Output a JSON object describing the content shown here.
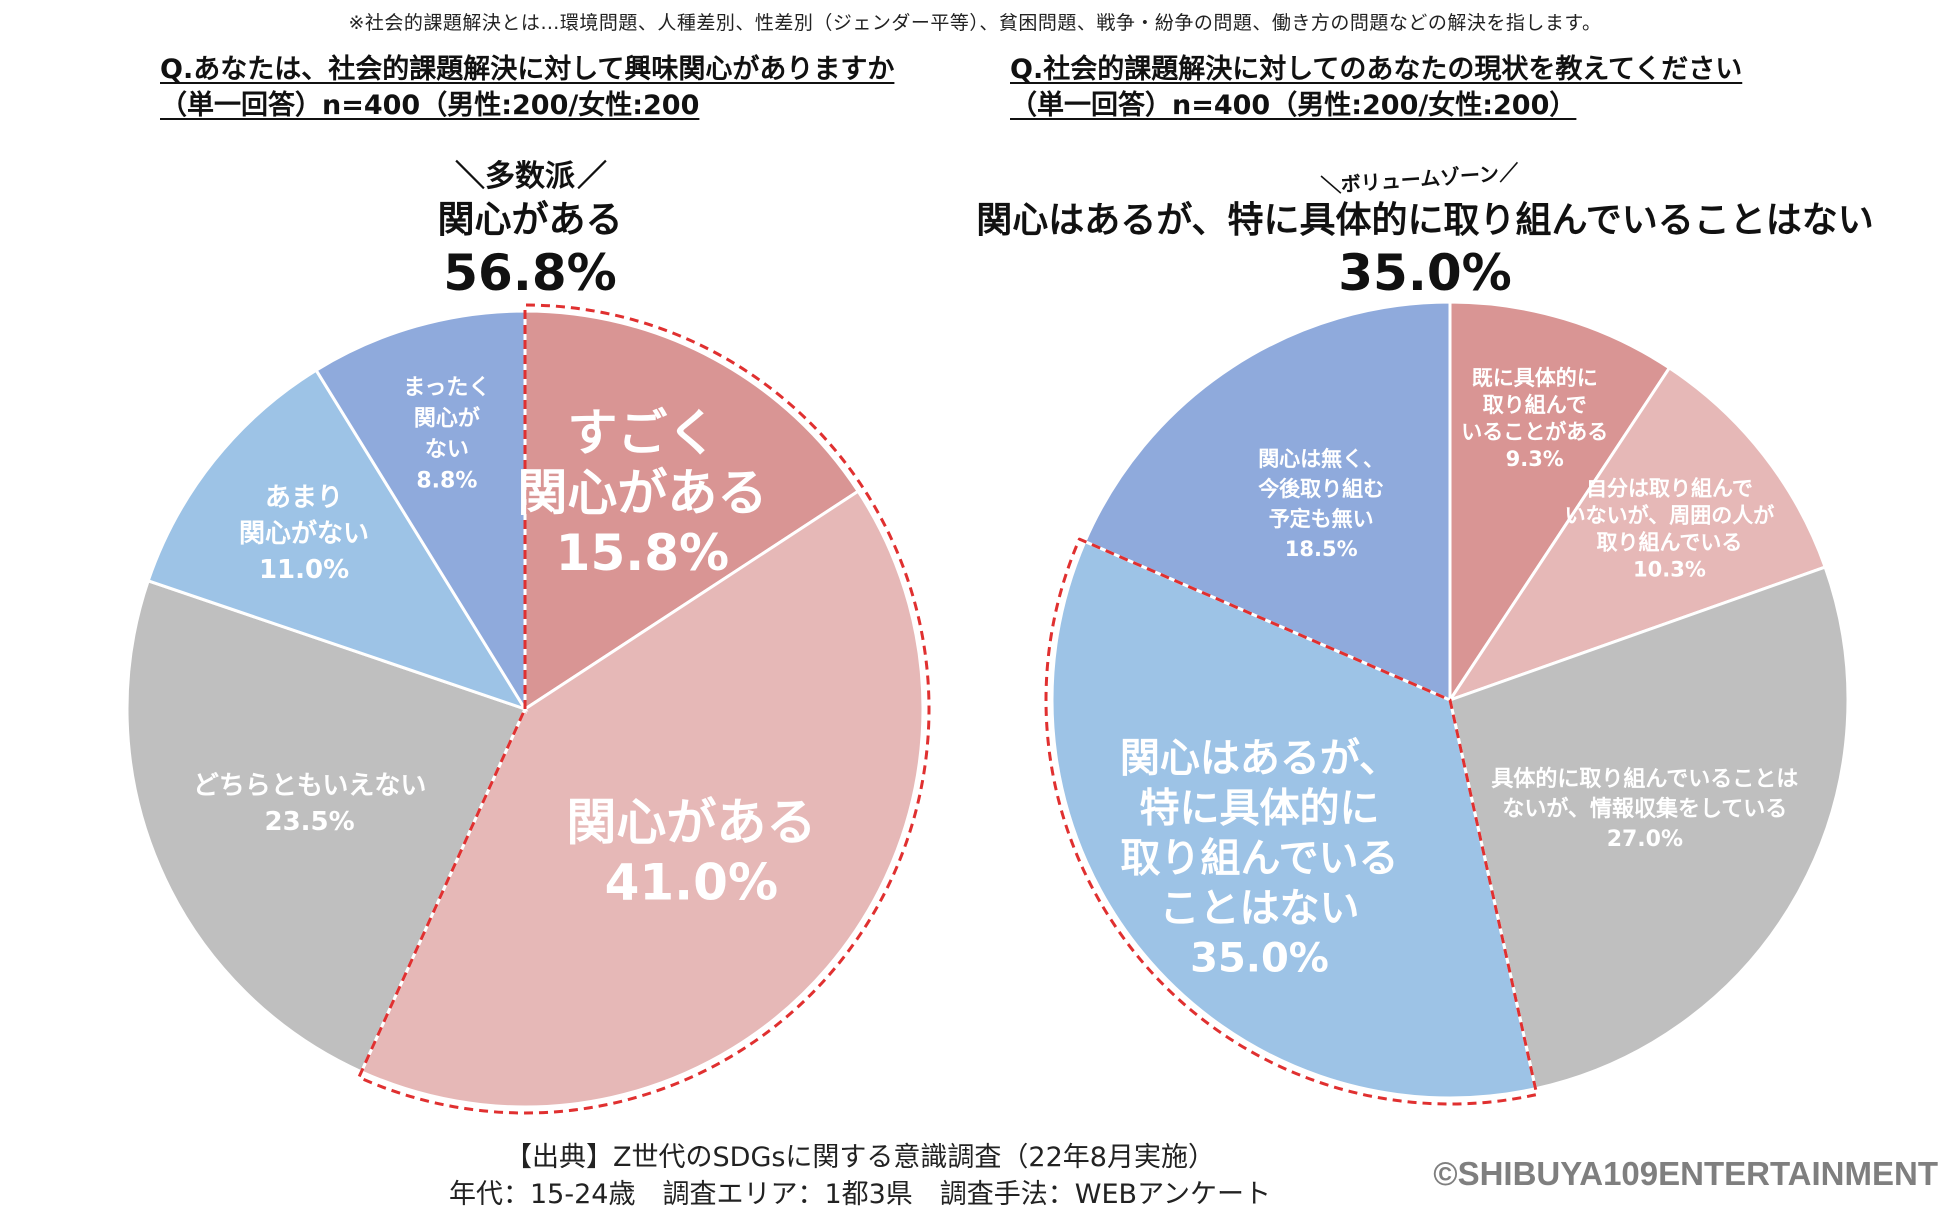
{
  "note": "※社会的課題解決とは…環境問題、人種差別、性差別（ジェンダー平等）、貧困問題、戦争・紛争の問題、働き方の問題などの解決を指します。",
  "left": {
    "question_line1": "Q.あなたは、社会的課題解決に対して興味関心がありますか",
    "question_line2": "（単一回答）n=400（男性:200/女性:200",
    "callout_tag_left": "＼",
    "callout_tag": "多数派",
    "callout_tag_right": "／",
    "callout_label": "関心がある",
    "callout_value": "56.8%"
  },
  "right": {
    "question_line1": "Q.社会的課題解決に対してのあなたの現状を教えてください",
    "question_line2": "（単一回答）n=400（男性:200/女性:200）",
    "callout_tag": "＼ボリュームゾーン／",
    "callout_label": "関心はあるが、特に具体的に取り組んでいることはない",
    "callout_value": "35.0%"
  },
  "source_line1": "【出典】Z世代のSDGsに関する意識調査（22年8月実施）",
  "source_line2": "年代：15-24歳　調査エリア：1都3県　調査手法：WEBアンケート",
  "copyright": "©SHIBUYA109ENTERTAINMENT",
  "colors": {
    "dark_pink": "#d99594",
    "light_pink": "#e6b8b7",
    "gray": "#bfbfbf",
    "light_blue": "#9dc3e6",
    "blue": "#8faadc",
    "highlight": "#e03030"
  },
  "chart_data": [
    {
      "type": "pie",
      "slices": [
        {
          "label_lines": [
            "すごく",
            "関心がある"
          ],
          "value": 15.8,
          "value_label": "15.8%",
          "color": "#d99594"
        },
        {
          "label_lines": [
            "関心がある"
          ],
          "value": 41.0,
          "value_label": "41.0%",
          "color": "#e6b8b7"
        },
        {
          "label_lines": [
            "どちらともいえない"
          ],
          "value": 23.5,
          "value_label": "23.5%",
          "color": "#bfbfbf"
        },
        {
          "label_lines": [
            "あまり",
            "関心がない"
          ],
          "value": 11.0,
          "value_label": "11.0%",
          "color": "#9dc3e6"
        },
        {
          "label_lines": [
            "まったく",
            "関心が",
            "ない"
          ],
          "value": 8.8,
          "value_label": "8.8%",
          "color": "#8faadc"
        }
      ],
      "highlight_group": [
        0,
        1
      ]
    },
    {
      "type": "pie",
      "slices": [
        {
          "label_lines": [
            "既に具体的に",
            "取り組んで",
            "いることがある"
          ],
          "value": 9.3,
          "value_label": "9.3%",
          "color": "#d99594"
        },
        {
          "label_lines": [
            "自分は取り組んで",
            "いないが、周囲の人が",
            "取り組んでいる"
          ],
          "value": 10.3,
          "value_label": "10.3%",
          "color": "#e6b8b7"
        },
        {
          "label_lines": [
            "具体的に取り組んでいることは",
            "ないが、情報収集をしている"
          ],
          "value": 27.0,
          "value_label": "27.0%",
          "color": "#bfbfbf"
        },
        {
          "label_lines": [
            "関心はあるが、",
            "特に具体的に",
            "取り組んでいる",
            "ことはない"
          ],
          "value": 35.0,
          "value_label": "35.0%",
          "color": "#9dc3e6"
        },
        {
          "label_lines": [
            "関心は無く、",
            "今後取り組む",
            "予定も無い"
          ],
          "value": 18.5,
          "value_label": "18.5%",
          "color": "#8faadc"
        }
      ],
      "highlight_group": [
        3
      ]
    }
  ]
}
